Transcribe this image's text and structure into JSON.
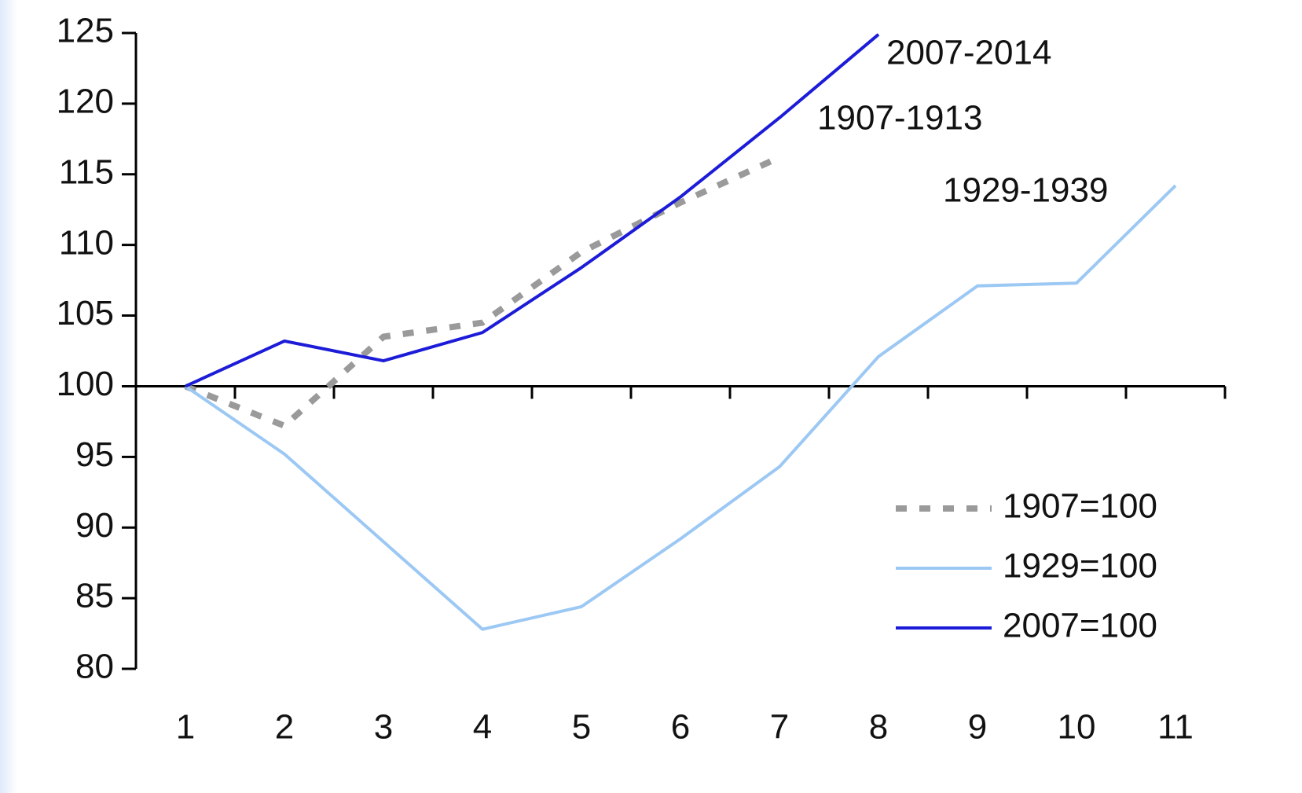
{
  "chart_data": {
    "type": "line",
    "categories": [
      "1",
      "2",
      "3",
      "4",
      "5",
      "6",
      "7",
      "8",
      "9",
      "10",
      "11"
    ],
    "series": [
      {
        "name": "1907=100",
        "color": "#9a9a9a",
        "dashed": true,
        "values": [
          100,
          97.2,
          103.5,
          104.5,
          109.5,
          113,
          116.2,
          null,
          null,
          null,
          null
        ]
      },
      {
        "name": "1929=100",
        "color": "#9cc8f4",
        "dashed": false,
        "values": [
          100,
          95.2,
          89,
          82.8,
          84.4,
          89.2,
          94.3,
          102.1,
          107.1,
          107.3,
          114.2
        ]
      },
      {
        "name": "2007=100",
        "color": "#1c1cd8",
        "dashed": false,
        "values": [
          100,
          103.2,
          101.8,
          103.8,
          108.4,
          113.4,
          119,
          124.9,
          null,
          null,
          null
        ]
      }
    ],
    "annotations": [
      "2007-2014",
      "1907-1913",
      "1929-1939"
    ],
    "ylim": [
      80,
      125
    ],
    "yticks": [
      80,
      85,
      90,
      95,
      100,
      105,
      110,
      115,
      120,
      125
    ],
    "x_axis_crosses": 100,
    "legend": "lower right"
  }
}
